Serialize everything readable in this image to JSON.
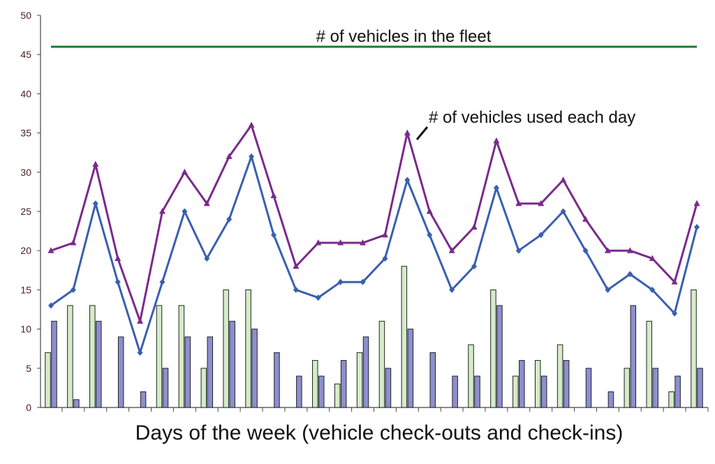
{
  "chart_data": {
    "type": "bar",
    "xlabel": "Days of the week (vehicle check-outs and check-ins)",
    "ylabel": "",
    "ylim": [
      0,
      50
    ],
    "yticks": [
      0,
      5,
      10,
      15,
      20,
      25,
      30,
      35,
      40,
      45,
      50
    ],
    "grid": false,
    "series": [
      {
        "type": "line",
        "color": "#7a2a8c",
        "marker": "triangle",
        "values": [
          20,
          21,
          31,
          19,
          11,
          25,
          30,
          26,
          32,
          36,
          27,
          18,
          21,
          21,
          21,
          22,
          35,
          25,
          20,
          23,
          34,
          26,
          26,
          29,
          24,
          20,
          20,
          19,
          16,
          26
        ]
      },
      {
        "type": "line",
        "color": "#3a5fb0",
        "marker": "diamond",
        "values": [
          13,
          15,
          26,
          16,
          7,
          16,
          25,
          19,
          24,
          32,
          22,
          15,
          14,
          16,
          16,
          19,
          29,
          22,
          15,
          18,
          28,
          20,
          22,
          25,
          20,
          15,
          17,
          15,
          12,
          23
        ]
      },
      {
        "type": "bar",
        "color": "#d4ecc8",
        "values": [
          7,
          13,
          13,
          0,
          0,
          13,
          13,
          5,
          15,
          15,
          0,
          0,
          6,
          3,
          7,
          11,
          18,
          0,
          0,
          8,
          15,
          4,
          6,
          8,
          0,
          0,
          5,
          11,
          2,
          15
        ]
      },
      {
        "type": "bar",
        "color": "#8c8fcf",
        "values": [
          11,
          1,
          11,
          9,
          2,
          5,
          9,
          9,
          11,
          10,
          7,
          4,
          4,
          6,
          9,
          5,
          10,
          7,
          4,
          4,
          13,
          6,
          4,
          6,
          5,
          2,
          13,
          5,
          4,
          5
        ]
      },
      {
        "type": "line",
        "color": "#1f7a2e",
        "values": [
          46,
          46
        ]
      }
    ],
    "annotations": [
      {
        "text": "# of vehicles in the fleet"
      },
      {
        "text": "# of vehicles used each day"
      }
    ]
  }
}
